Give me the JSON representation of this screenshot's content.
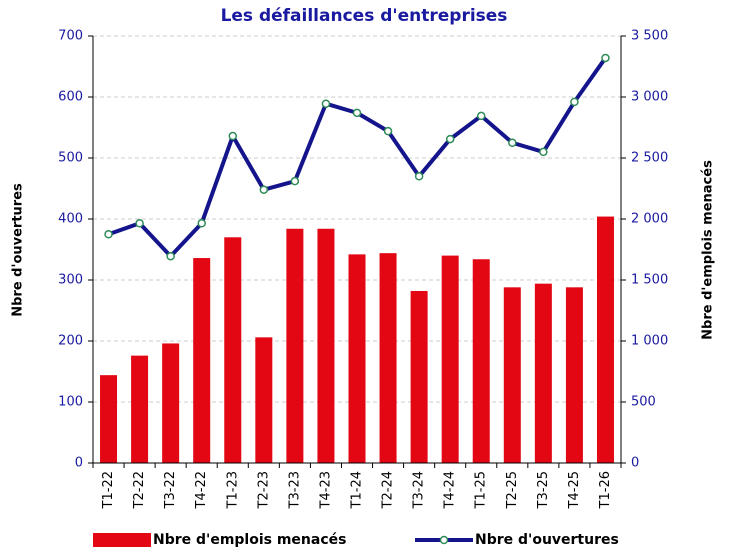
{
  "chart_data": {
    "type": "bar_line",
    "title": "Les défaillances d'entreprises",
    "categories": [
      "T1-22",
      "T2-22",
      "T3-22",
      "T4-22",
      "T1-23",
      "T2-23",
      "T3-23",
      "T4-23",
      "T1-24",
      "T2-24",
      "T3-24",
      "T4-24",
      "T1-25",
      "T2-25",
      "T3-25",
      "T4-25",
      "T1-26"
    ],
    "series": [
      {
        "name": "Nbre d'emplois menacés",
        "type": "bar",
        "axis": "y2",
        "color": "#e30613",
        "values": [
          720,
          880,
          980,
          1680,
          1850,
          1030,
          1920,
          1920,
          1710,
          1720,
          1410,
          1700,
          1670,
          1440,
          1470,
          1440,
          2020
        ]
      },
      {
        "name": "Nbre d'ouvertures",
        "type": "line",
        "axis": "y",
        "color": "#14148c",
        "marker_color": "#2e8b57",
        "values": [
          375,
          393,
          339,
          393,
          536,
          448,
          462,
          589,
          574,
          544,
          470,
          531,
          569,
          525,
          510,
          592,
          664
        ]
      }
    ],
    "ylabel": "Nbre d'ouvertures",
    "y2label": "Nbre d'emplois menacés",
    "ylim": [
      0,
      700
    ],
    "yticks": [
      0,
      100,
      200,
      300,
      400,
      500,
      600,
      700
    ],
    "y2lim": [
      0,
      3500
    ],
    "y2ticks": [
      0,
      500,
      {
        "value": 1000,
        "label": "1 000"
      },
      {
        "value": 1500,
        "label": "1 500"
      },
      {
        "value": 2000,
        "label": "2 000"
      },
      {
        "value": 2500,
        "label": "2 500"
      },
      {
        "value": 3000,
        "label": "3 000"
      },
      {
        "value": 3500,
        "label": "3 500"
      }
    ],
    "grid": true,
    "legend": "bottom"
  }
}
